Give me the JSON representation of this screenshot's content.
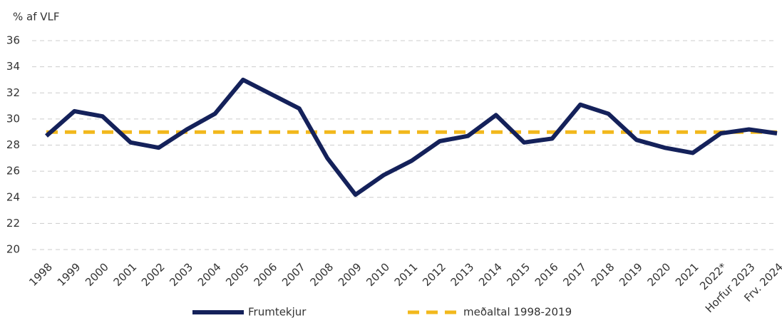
{
  "chart_data": {
    "type": "line",
    "y_label": "% af VLF",
    "categories": [
      "1998",
      "1999",
      "2000",
      "2001",
      "2002",
      "2003",
      "2004",
      "2005",
      "2006",
      "2007",
      "2008",
      "2009",
      "2010",
      "2011",
      "2012",
      "2013",
      "2014",
      "2015",
      "2016",
      "2017",
      "2018",
      "2019",
      "2020",
      "2021",
      "2022*",
      "Horfur 2023",
      "Frv. 2024"
    ],
    "series": [
      {
        "name": "Frumtekjur",
        "color": "#14215a",
        "dashed": false,
        "values": [
          28.7,
          30.6,
          30.2,
          28.2,
          27.8,
          29.2,
          30.4,
          33.0,
          31.9,
          30.8,
          27.0,
          24.2,
          25.7,
          26.8,
          28.3,
          28.7,
          30.3,
          28.2,
          28.5,
          31.1,
          30.4,
          28.4,
          27.8,
          27.4,
          28.9,
          29.2,
          28.9
        ]
      },
      {
        "name": "meðaltal 1998-2019",
        "color": "#f2b81c",
        "dashed": true,
        "values": [
          29,
          29,
          29,
          29,
          29,
          29,
          29,
          29,
          29,
          29,
          29,
          29,
          29,
          29,
          29,
          29,
          29,
          29,
          29,
          29,
          29,
          29,
          29,
          29,
          29,
          29,
          29
        ]
      }
    ],
    "ylim": [
      20,
      36
    ],
    "yticks": [
      20,
      22,
      24,
      26,
      28,
      30,
      32,
      34,
      36
    ],
    "grid": true
  }
}
